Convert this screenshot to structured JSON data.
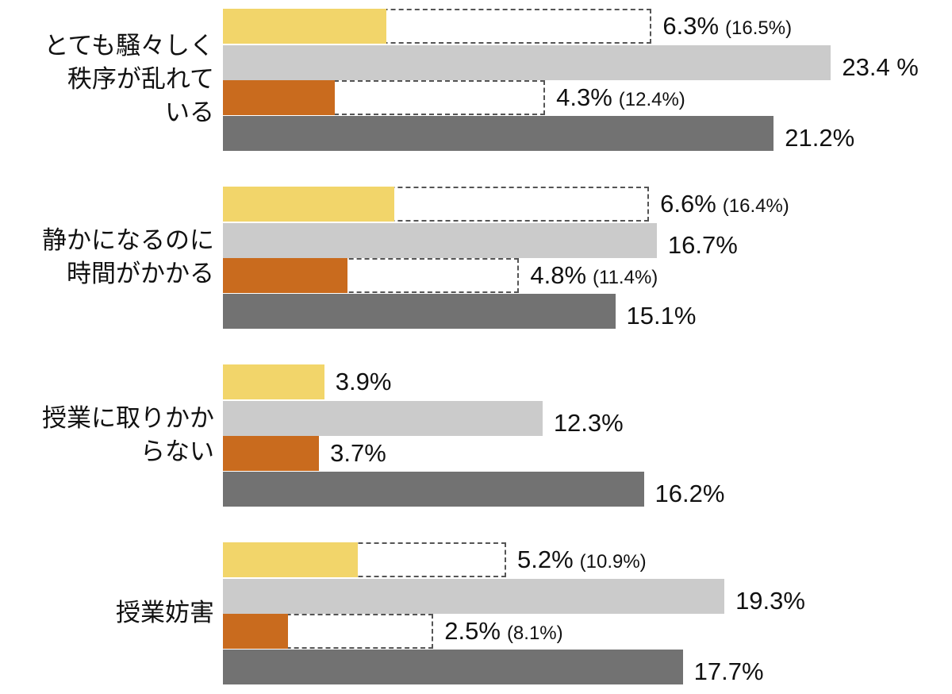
{
  "chart_data": {
    "type": "bar",
    "orientation": "horizontal",
    "grid": false,
    "legend": "none",
    "unit": "%",
    "colors": [
      "#F2D56A",
      "#CBCBCB",
      "#C96B1E",
      "#727272"
    ],
    "categories": [
      {
        "label_lines": [
          "とても騒々しく",
          "秩序が乱れて",
          "いる"
        ]
      },
      {
        "label_lines": [
          "静かになるのに",
          "時間がかかる"
        ]
      },
      {
        "label_lines": [
          "授業に取りかか",
          "らない"
        ]
      },
      {
        "label_lines": [
          "授業妨害"
        ]
      }
    ],
    "bars": [
      [
        {
          "value": 6.3,
          "label": "6.3%",
          "outline_value": 16.5,
          "outline_label": "(16.5%)"
        },
        {
          "value": 23.4,
          "label": "23.4 %"
        },
        {
          "value": 4.3,
          "label": "4.3%",
          "outline_value": 12.4,
          "outline_label": "(12.4%)"
        },
        {
          "value": 21.2,
          "label": "21.2%"
        }
      ],
      [
        {
          "value": 6.6,
          "label": "6.6%",
          "outline_value": 16.4,
          "outline_label": "(16.4%)"
        },
        {
          "value": 16.7,
          "label": "16.7%"
        },
        {
          "value": 4.8,
          "label": "4.8%",
          "outline_value": 11.4,
          "outline_label": "(11.4%)"
        },
        {
          "value": 15.1,
          "label": "15.1%"
        }
      ],
      [
        {
          "value": 3.9,
          "label": "3.9%"
        },
        {
          "value": 12.3,
          "label": "12.3%"
        },
        {
          "value": 3.7,
          "label": "3.7%"
        },
        {
          "value": 16.2,
          "label": "16.2%"
        }
      ],
      [
        {
          "value": 5.2,
          "label": "5.2%",
          "outline_value": 10.9,
          "outline_label": "(10.9%)"
        },
        {
          "value": 19.3,
          "label": "19.3%"
        },
        {
          "value": 2.5,
          "label": "2.5%",
          "outline_value": 8.1,
          "outline_label": "(8.1%)"
        },
        {
          "value": 17.7,
          "label": "17.7%"
        }
      ]
    ]
  }
}
